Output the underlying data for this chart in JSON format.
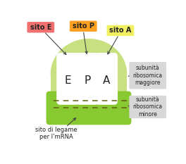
{
  "bg_color": "#ffffff",
  "large_subunit_color": "#c8e080",
  "small_subunit_color": "#88c830",
  "slot_color": "#ffffff",
  "label_E_bg": "#f07070",
  "label_P_bg": "#ffa020",
  "label_A_bg": "#f0f060",
  "label_box_bg": "#d8d8d8",
  "dashed_color": "#606010",
  "text_color": "#222222",
  "slot_labels": [
    "E",
    "P",
    "A"
  ],
  "site_labels": [
    "sito E",
    "sito P",
    "sito A"
  ],
  "right_labels_1": "subunità\nribosomica\nmaggiore",
  "right_labels_2": "subunità\nribosomica\nminore",
  "bottom_label": "sito di legame\nper l’mRNA"
}
